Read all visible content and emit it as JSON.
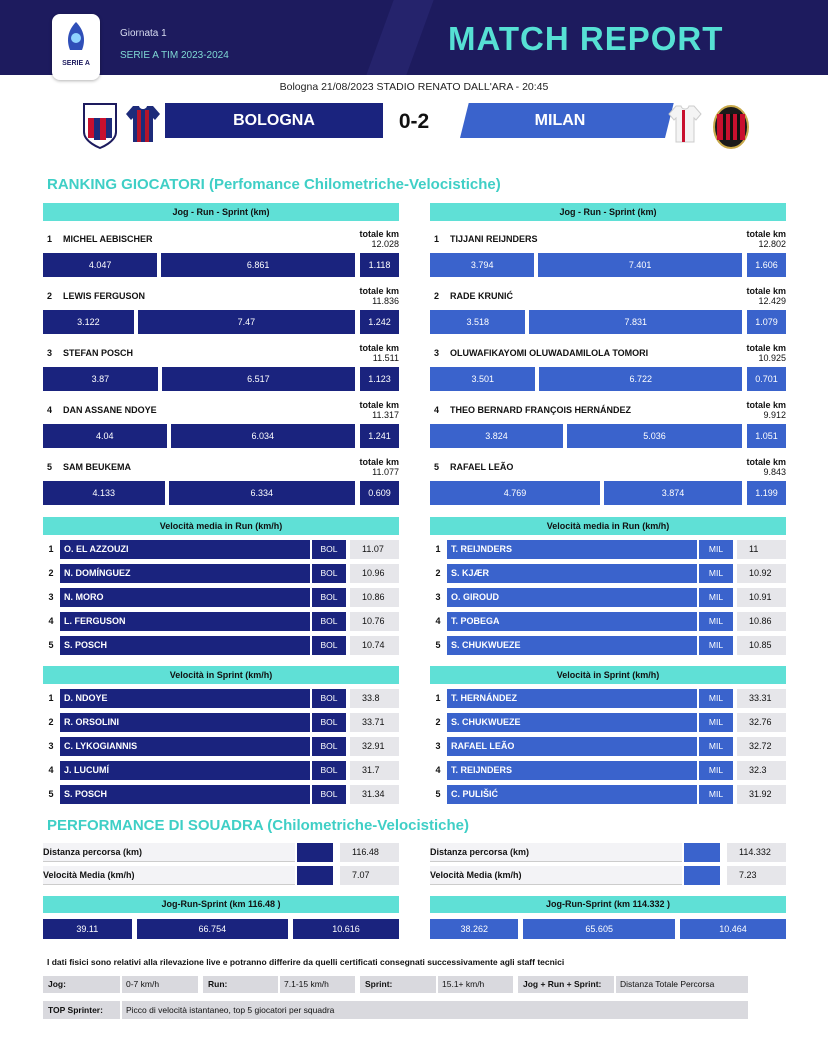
{
  "header": {
    "logo_text": "SERIE A",
    "round": "Giornata 1",
    "season": "SERIE A TIM 2023-2024",
    "title": "MATCH REPORT"
  },
  "match": {
    "info": "Bologna 21/08/2023 STADIO RENATO DALL'ARA - 20:45",
    "home": "BOLOGNA",
    "score": "0-2",
    "away": "MILAN"
  },
  "ranking": {
    "title": "RANKING GIOCATORI (Perfomance Chilometriche-Velocistiche)",
    "header": "Jog - Run - Sprint    (km)",
    "total_label": "totale km",
    "home": [
      {
        "rank": 1,
        "name": "MICHEL AEBISCHER",
        "total": 12.028,
        "jog": 4.047,
        "run": 6.861,
        "sprint": 1.118
      },
      {
        "rank": 2,
        "name": "LEWIS FERGUSON",
        "total": 11.836,
        "jog": 3.122,
        "run": 7.47,
        "sprint": 1.242
      },
      {
        "rank": 3,
        "name": "STEFAN POSCH",
        "total": 11.511,
        "jog": 3.87,
        "run": 6.517,
        "sprint": 1.123
      },
      {
        "rank": 4,
        "name": "DAN ASSANE NDOYE",
        "total": 11.317,
        "jog": 4.04,
        "run": 6.034,
        "sprint": 1.241
      },
      {
        "rank": 5,
        "name": "SAM BEUKEMA",
        "total": 11.077,
        "jog": 4.133,
        "run": 6.334,
        "sprint": 0.609
      }
    ],
    "away": [
      {
        "rank": 1,
        "name": "TIJJANI REIJNDERS",
        "total": 12.802,
        "jog": 3.794,
        "run": 7.401,
        "sprint": 1.606
      },
      {
        "rank": 2,
        "name": "RADE KRUNIĆ",
        "total": 12.429,
        "jog": 3.518,
        "run": 7.831,
        "sprint": 1.079
      },
      {
        "rank": 3,
        "name": "OLUWAFIKAYOMI OLUWADAMILOLA TOMORI",
        "total": 10.925,
        "jog": 3.501,
        "run": 6.722,
        "sprint": 0.701
      },
      {
        "rank": 4,
        "name": "THEO BERNARD FRANÇOIS HERNÁNDEZ",
        "total": 9.912,
        "jog": 3.824,
        "run": 5.036,
        "sprint": 1.051
      },
      {
        "rank": 5,
        "name": "RAFAEL LEÃO",
        "total": 9.843,
        "jog": 4.769,
        "run": 3.874,
        "sprint": 1.199
      }
    ]
  },
  "run_speed": {
    "header": "Velocità media in Run    (km/h)",
    "home": [
      {
        "rank": 1,
        "name": "O. EL AZZOUZI",
        "team": "BOL",
        "value": 11.07
      },
      {
        "rank": 2,
        "name": "N. DOMÍNGUEZ",
        "team": "BOL",
        "value": 10.96
      },
      {
        "rank": 3,
        "name": "N. MORO",
        "team": "BOL",
        "value": 10.86
      },
      {
        "rank": 4,
        "name": "L. FERGUSON",
        "team": "BOL",
        "value": 10.76
      },
      {
        "rank": 5,
        "name": "S. POSCH",
        "team": "BOL",
        "value": 10.74
      }
    ],
    "away": [
      {
        "rank": 1,
        "name": "T. REIJNDERS",
        "team": "MIL",
        "value": 11
      },
      {
        "rank": 2,
        "name": "S. KJÆR",
        "team": "MIL",
        "value": 10.92
      },
      {
        "rank": 3,
        "name": "O. GIROUD",
        "team": "MIL",
        "value": 10.91
      },
      {
        "rank": 4,
        "name": "T. POBEGA",
        "team": "MIL",
        "value": 10.86
      },
      {
        "rank": 5,
        "name": "S. CHUKWUEZE",
        "team": "MIL",
        "value": 10.85
      }
    ]
  },
  "sprint_speed": {
    "header": "Velocità in Sprint    (km/h)",
    "home": [
      {
        "rank": 1,
        "name": "D. NDOYE",
        "team": "BOL",
        "value": 33.8
      },
      {
        "rank": 2,
        "name": "R. ORSOLINI",
        "team": "BOL",
        "value": 33.71
      },
      {
        "rank": 3,
        "name": "C. LYKOGIANNIS",
        "team": "BOL",
        "value": 32.91
      },
      {
        "rank": 4,
        "name": "J. LUCUMÍ",
        "team": "BOL",
        "value": 31.7
      },
      {
        "rank": 5,
        "name": "S. POSCH",
        "team": "BOL",
        "value": 31.34
      }
    ],
    "away": [
      {
        "rank": 1,
        "name": "T. HERNÁNDEZ",
        "team": "MIL",
        "value": 33.31
      },
      {
        "rank": 2,
        "name": "S. CHUKWUEZE",
        "team": "MIL",
        "value": 32.76
      },
      {
        "rank": 3,
        "name": "RAFAEL LEÃO",
        "team": "MIL",
        "value": 32.72
      },
      {
        "rank": 4,
        "name": "T. REIJNDERS",
        "team": "MIL",
        "value": 32.3
      },
      {
        "rank": 5,
        "name": "C. PULIŠIĆ",
        "team": "MIL",
        "value": 31.92
      }
    ]
  },
  "team": {
    "title": "PERFORMANCE DI SOUADRA (Chilometriche-Velocistiche)",
    "distance_label": "Distanza percorsa (km)",
    "speed_label": "Velocità Media (km/h)",
    "home": {
      "distance": 116.48,
      "speed": 7.07,
      "jrs_header": "Jog-Run-Sprint (km 116.48 )",
      "jog": 39.11,
      "run": 66.754,
      "sprint": 10.616
    },
    "away": {
      "distance": 114.332,
      "speed": 7.23,
      "jrs_header": "Jog-Run-Sprint (km 114.332 )",
      "jog": 38.262,
      "run": 65.605,
      "sprint": 10.464
    }
  },
  "footer": {
    "note": "I dati fisici sono relativi alla rilevazione live e potranno differire da quelli certificati consegnati successivamente agli staff tecnici",
    "legend": [
      {
        "label": "Jog:",
        "value": "0-7 km/h"
      },
      {
        "label": "Run:",
        "value": "7.1-15 km/h"
      },
      {
        "label": "Sprint:",
        "value": "15.1+ km/h"
      },
      {
        "label": "Jog + Run + Sprint:",
        "value": "Distanza Totale Percorsa"
      }
    ],
    "top_sprinter": {
      "label": "TOP Sprinter:",
      "value": "Picco di velocità istantaneo, top 5 giocatori per squadra"
    }
  }
}
